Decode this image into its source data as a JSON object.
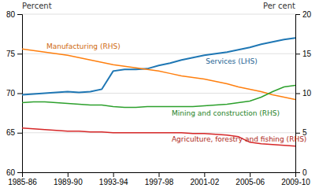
{
  "chart_data": {
    "type": "line",
    "categories": [
      "1985-86",
      null,
      null,
      null,
      "1989-90",
      null,
      null,
      null,
      "1993-94",
      null,
      null,
      null,
      "1997-98",
      null,
      null,
      null,
      "2001-02",
      null,
      null,
      null,
      "2005-06",
      null,
      null,
      null,
      "2009-10"
    ],
    "ylabel": "Percent",
    "y2label": "Per cent",
    "ylim": [
      60,
      80
    ],
    "yticks": [
      60,
      65,
      70,
      75,
      80
    ],
    "y2lim": [
      0,
      20
    ],
    "y2ticks": [
      0,
      5,
      10,
      15,
      20
    ],
    "grid": true,
    "series": [
      {
        "name": "Services (LHS)",
        "values": [
          69.8,
          69.9,
          70.0,
          70.1,
          70.2,
          70.1,
          70.2,
          70.5,
          72.8,
          73.0,
          73.0,
          73.1,
          73.5,
          73.8,
          74.2,
          74.5,
          74.8,
          75.0,
          75.2,
          75.5,
          75.8,
          76.2,
          76.5,
          76.8,
          77.0
        ]
      },
      {
        "name": "Manufacturing (RHS)",
        "axis": "y2",
        "values": [
          15.6,
          15.4,
          15.2,
          15.0,
          14.8,
          14.5,
          14.2,
          13.9,
          13.6,
          13.4,
          13.2,
          13.0,
          12.8,
          12.5,
          12.2,
          12.0,
          11.8,
          11.5,
          11.2,
          10.8,
          10.5,
          10.2,
          9.8,
          9.5,
          9.2
        ]
      },
      {
        "name": "Mining and construction (RHS)",
        "axis": "y2",
        "values": [
          8.8,
          8.9,
          8.9,
          8.8,
          8.7,
          8.6,
          8.5,
          8.5,
          8.3,
          8.2,
          8.2,
          8.3,
          8.3,
          8.3,
          8.3,
          8.3,
          8.4,
          8.5,
          8.6,
          8.8,
          9.0,
          9.5,
          10.2,
          10.8,
          11.0
        ]
      },
      {
        "name": "Agriculture, forestry and fishing (RHS)",
        "axis": "y2",
        "values": [
          5.6,
          5.5,
          5.4,
          5.3,
          5.2,
          5.2,
          5.1,
          5.1,
          5.0,
          5.0,
          5.0,
          5.0,
          5.0,
          5.0,
          5.0,
          4.9,
          4.9,
          4.8,
          4.7,
          4.5,
          3.8,
          3.6,
          3.5,
          3.4,
          3.3
        ]
      }
    ]
  }
}
